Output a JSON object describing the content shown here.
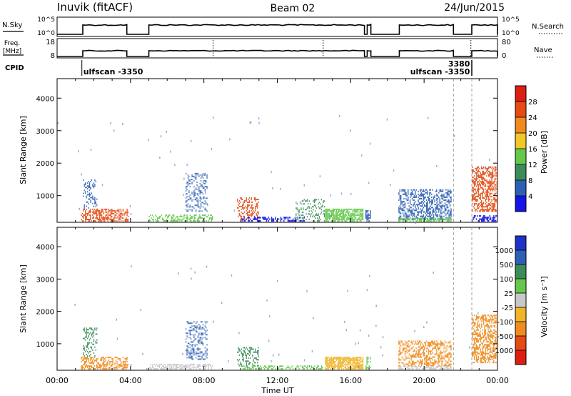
{
  "header": {
    "station": "Inuvik (fitACF)",
    "beam": "Beam 02",
    "date": "24/Jun/2015"
  },
  "top_panels": {
    "nsky_label": "N.Sky",
    "nsky_ticks": [
      "10^5",
      "10^0"
    ],
    "nsearch_label": "N.Search",
    "nsearch_ticks": [
      "10^5",
      "10^0"
    ],
    "freq_label_1": "Freq.",
    "freq_label_2": "[MHz]",
    "freq_ticks": [
      "18",
      "8"
    ],
    "nave_label": "Nave",
    "nave_ticks": [
      "80",
      "0"
    ],
    "cpid_label": "CPID",
    "cpid_annotations": [
      {
        "text": "ulfscan -3350",
        "hour": 1.35
      },
      {
        "text": "ulfscan -3350",
        "hour": 21.6
      },
      {
        "text": "3380",
        "hour": 21.6
      }
    ],
    "on_segments": [
      [
        1.4,
        3.8
      ],
      [
        5.0,
        16.75
      ],
      [
        16.9,
        17.1
      ],
      [
        18.65,
        21.6
      ],
      [
        22.6,
        24.0
      ]
    ],
    "dotted_markers": [
      8.5,
      14.5,
      22.55
    ]
  },
  "chart_data": [
    {
      "type": "heatmap",
      "name": "power",
      "xlabel": "",
      "ylabel": "Slant Range [km]",
      "x_range": [
        0,
        24
      ],
      "y_range": [
        180,
        4600
      ],
      "y_ticks": [
        1000,
        2000,
        3000,
        4000
      ],
      "colorbar_label": "Power [dB]",
      "colorbar_ticks": [
        "4",
        "8",
        "12",
        "16",
        "20",
        "24",
        "28"
      ],
      "colorbar_colors": [
        "#1414e6",
        "#2d5fb4",
        "#3c8c5a",
        "#64c84b",
        "#f0c828",
        "#f08c1e",
        "#e64b14",
        "#dc1e14"
      ],
      "regions": [
        {
          "t0": 1.3,
          "t1": 3.9,
          "r0": 200,
          "r1": 600,
          "color": "#e64b14",
          "density": 0.55
        },
        {
          "t0": 1.4,
          "t1": 2.2,
          "r0": 600,
          "r1": 1500,
          "color": "#2d5fb4",
          "density": 0.25
        },
        {
          "t0": 5.0,
          "t1": 8.5,
          "r0": 200,
          "r1": 420,
          "color": "#64c84b",
          "density": 0.45
        },
        {
          "t0": 7.0,
          "t1": 8.2,
          "r0": 500,
          "r1": 1700,
          "color": "#2d5fb4",
          "density": 0.3
        },
        {
          "t0": 9.8,
          "t1": 11.0,
          "r0": 250,
          "r1": 950,
          "color": "#e64b14",
          "density": 0.4
        },
        {
          "t0": 10.0,
          "t1": 13.5,
          "r0": 200,
          "r1": 350,
          "color": "#1414e6",
          "density": 0.5
        },
        {
          "t0": 13.0,
          "t1": 14.6,
          "r0": 200,
          "r1": 900,
          "color": "#3c8c5a",
          "density": 0.3
        },
        {
          "t0": 14.6,
          "t1": 16.7,
          "r0": 200,
          "r1": 600,
          "color": "#64c84b",
          "density": 0.8
        },
        {
          "t0": 16.8,
          "t1": 17.1,
          "r0": 200,
          "r1": 600,
          "color": "#2d5fb4",
          "density": 0.6
        },
        {
          "t0": 18.6,
          "t1": 21.5,
          "r0": 250,
          "r1": 1200,
          "color": "#2d5fb4",
          "density": 0.45
        },
        {
          "t0": 18.6,
          "t1": 21.5,
          "r0": 200,
          "r1": 320,
          "color": "#64c84b",
          "density": 0.6
        },
        {
          "t0": 22.6,
          "t1": 24.0,
          "r0": 500,
          "r1": 1900,
          "color": "#e64b14",
          "density": 0.55
        },
        {
          "t0": 22.6,
          "t1": 24.0,
          "r0": 200,
          "r1": 400,
          "color": "#1414e6",
          "density": 0.5
        }
      ]
    },
    {
      "type": "heatmap",
      "name": "velocity",
      "xlabel": "Time UT",
      "ylabel": "Slant Range [km]",
      "x_range": [
        0,
        24
      ],
      "y_range": [
        180,
        4600
      ],
      "x_ticks": [
        "00:00",
        "04:00",
        "08:00",
        "12:00",
        "16:00",
        "20:00",
        "00:00"
      ],
      "y_ticks": [
        1000,
        2000,
        3000,
        4000
      ],
      "colorbar_label": "Velocity [m s⁻¹]",
      "colorbar_ticks": [
        "1000",
        "500",
        "100",
        "25",
        "-25",
        "-100",
        "-500",
        "-1000"
      ],
      "colorbar_colors": [
        "#1e32c8",
        "#2d5fb4",
        "#3c8c5a",
        "#64c84b",
        "#c8c8c8",
        "#f0b428",
        "#f08c1e",
        "#e64b14",
        "#dc1e14"
      ],
      "regions": [
        {
          "t0": 1.3,
          "t1": 3.9,
          "r0": 200,
          "r1": 600,
          "color": "#f08c1e",
          "density": 0.5
        },
        {
          "t0": 1.4,
          "t1": 2.2,
          "r0": 600,
          "r1": 1500,
          "color": "#3c8c5a",
          "density": 0.25
        },
        {
          "t0": 5.0,
          "t1": 8.5,
          "r0": 200,
          "r1": 380,
          "color": "#c8c8c8",
          "density": 0.55
        },
        {
          "t0": 7.0,
          "t1": 8.2,
          "r0": 500,
          "r1": 1700,
          "color": "#2d5fb4",
          "density": 0.3
        },
        {
          "t0": 9.8,
          "t1": 11.0,
          "r0": 300,
          "r1": 900,
          "color": "#3c8c5a",
          "density": 0.35
        },
        {
          "t0": 10.0,
          "t1": 14.5,
          "r0": 200,
          "r1": 330,
          "color": "#64c84b",
          "density": 0.5
        },
        {
          "t0": 14.6,
          "t1": 16.7,
          "r0": 200,
          "r1": 600,
          "color": "#f0b428",
          "density": 0.85
        },
        {
          "t0": 16.8,
          "t1": 17.1,
          "r0": 200,
          "r1": 600,
          "color": "#64c84b",
          "density": 0.55
        },
        {
          "t0": 18.6,
          "t1": 21.5,
          "r0": 300,
          "r1": 1100,
          "color": "#f08c1e",
          "density": 0.45
        },
        {
          "t0": 18.6,
          "t1": 21.5,
          "r0": 200,
          "r1": 320,
          "color": "#c8c8c8",
          "density": 0.6
        },
        {
          "t0": 22.6,
          "t1": 24.0,
          "r0": 400,
          "r1": 1900,
          "color": "#f08c1e",
          "density": 0.55
        }
      ]
    }
  ]
}
